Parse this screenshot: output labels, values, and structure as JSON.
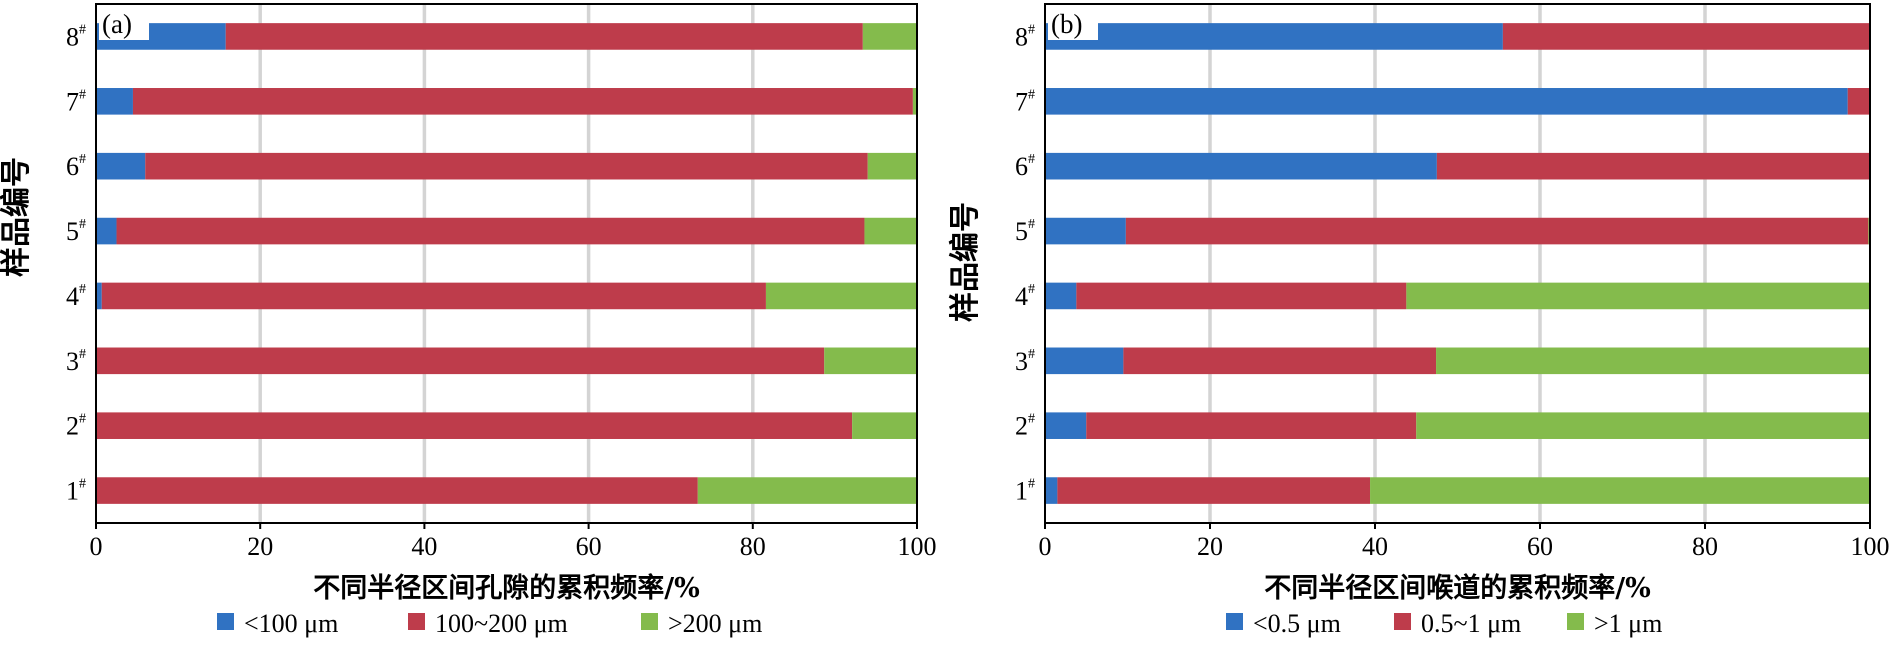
{
  "chart_data": [
    {
      "type": "bar",
      "orientation": "horizontal",
      "stacked": true,
      "panel_label": "(a)",
      "categories": [
        "1",
        "2",
        "3",
        "4",
        "5",
        "6",
        "7",
        "8"
      ],
      "category_superscript": "#",
      "series": [
        {
          "name": "<100 μm",
          "color": "#3072c2",
          "values": [
            0.0,
            0.0,
            0.0,
            0.7,
            2.5,
            6.0,
            4.5,
            15.8
          ]
        },
        {
          "name": "100~200 μm",
          "color": "#be3c4b",
          "values": [
            73.3,
            92.1,
            88.7,
            80.9,
            91.1,
            88.0,
            95.0,
            77.6
          ]
        },
        {
          "name": ">200 μm",
          "color": "#84bb4c",
          "values": [
            26.7,
            7.9,
            11.3,
            18.4,
            6.4,
            6.0,
            0.5,
            6.6
          ]
        }
      ],
      "xlim": [
        0,
        100
      ],
      "xticks": [
        0,
        20,
        40,
        60,
        80,
        100
      ],
      "xlabel": "不同半径区间孔隙的累积频率/%",
      "ylabel": "样品编号",
      "grid": "vertical",
      "legend_position": "bottom"
    },
    {
      "type": "bar",
      "orientation": "horizontal",
      "stacked": true,
      "panel_label": "(b)",
      "categories": [
        "1",
        "2",
        "3",
        "4",
        "5",
        "6",
        "7",
        "8"
      ],
      "category_superscript": "#",
      "series": [
        {
          "name": "<0.5 μm",
          "color": "#3072c2",
          "values": [
            1.5,
            5.0,
            9.5,
            3.8,
            9.8,
            47.5,
            97.3,
            55.5
          ]
        },
        {
          "name": "0.5~1 μm",
          "color": "#be3c4b",
          "values": [
            37.9,
            40.0,
            37.9,
            40.0,
            90.0,
            52.5,
            2.7,
            44.5
          ]
        },
        {
          "name": ">1 μm",
          "color": "#84bb4c",
          "values": [
            60.6,
            55.0,
            52.6,
            56.2,
            0.2,
            0.0,
            0.0,
            0.0
          ]
        }
      ],
      "xlim": [
        0,
        100
      ],
      "xticks": [
        0,
        20,
        40,
        60,
        80,
        100
      ],
      "xlabel": "不同半径区间喉道的累积频率/%",
      "ylabel": "样品编号",
      "grid": "vertical",
      "legend_position": "bottom"
    }
  ]
}
